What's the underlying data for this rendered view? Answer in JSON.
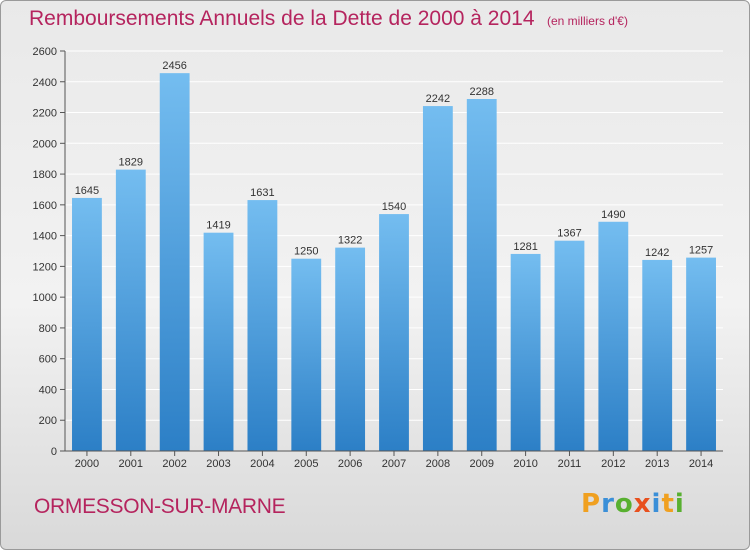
{
  "colors": {
    "bar_top": "#74bdf0",
    "bar_bottom": "#2c7fc6",
    "title": "#b5245e",
    "grid": "#ffffff",
    "axis": "#555555"
  },
  "chart_data": {
    "type": "bar",
    "title": "Remboursements Annuels de la Dette de 2000 à 2014",
    "subtitle": "(en milliers d'€)",
    "categories": [
      "2000",
      "2001",
      "2002",
      "2003",
      "2004",
      "2005",
      "2006",
      "2007",
      "2008",
      "2009",
      "2010",
      "2011",
      "2012",
      "2013",
      "2014"
    ],
    "values": [
      1645,
      1829,
      2456,
      1419,
      1631,
      1250,
      1322,
      1540,
      2242,
      2288,
      1281,
      1367,
      1490,
      1242,
      1257
    ],
    "yticks": [
      0,
      200,
      400,
      600,
      800,
      1000,
      1200,
      1400,
      1600,
      1800,
      2000,
      2200,
      2400,
      2600
    ],
    "ylim": [
      0,
      2600
    ],
    "grid": true
  },
  "footer": {
    "commune": "ORMESSON-SUR-MARNE",
    "logo_text": "Proxiti"
  }
}
